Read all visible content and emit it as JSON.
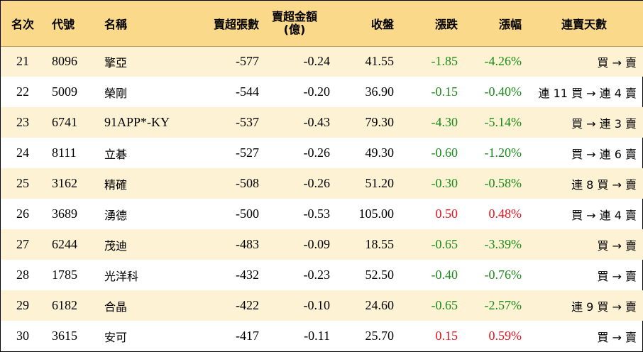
{
  "colors": {
    "header_bg": "#fbd98a",
    "alt_row_bg": "#fdf2d3",
    "up": "#e8101a",
    "down": "#1a8a1a"
  },
  "headers": {
    "rank": "名次",
    "code": "代號",
    "name": "名稱",
    "net_sell_volume": "賣超張數",
    "net_sell_amount_line1": "賣超金額",
    "net_sell_amount_line2": "(億)",
    "close": "收盤",
    "change": "漲跌",
    "change_pct": "漲幅",
    "consecutive_days": "連賣天數"
  },
  "rows": [
    {
      "rank": "21",
      "code": "8096",
      "name": "擎亞",
      "volume": "-577",
      "amount": "-0.24",
      "close": "41.55",
      "change": "-1.85",
      "pct": "-4.26%",
      "dir": "down",
      "days": "買 → 賣"
    },
    {
      "rank": "22",
      "code": "5009",
      "name": "榮剛",
      "volume": "-544",
      "amount": "-0.20",
      "close": "36.90",
      "change": "-0.15",
      "pct": "-0.40%",
      "dir": "down",
      "days": "連 11 買 → 連 4 賣"
    },
    {
      "rank": "23",
      "code": "6741",
      "name": "91APP*-KY",
      "volume": "-537",
      "amount": "-0.43",
      "close": "79.30",
      "change": "-4.30",
      "pct": "-5.14%",
      "dir": "down",
      "days": "買 → 連 3 賣"
    },
    {
      "rank": "24",
      "code": "8111",
      "name": "立碁",
      "volume": "-527",
      "amount": "-0.26",
      "close": "49.30",
      "change": "-0.60",
      "pct": "-1.20%",
      "dir": "down",
      "days": "買 → 連 6 賣"
    },
    {
      "rank": "25",
      "code": "3162",
      "name": "精確",
      "volume": "-508",
      "amount": "-0.26",
      "close": "51.20",
      "change": "-0.30",
      "pct": "-0.58%",
      "dir": "down",
      "days": "連 8 買 → 賣"
    },
    {
      "rank": "26",
      "code": "3689",
      "name": "湧德",
      "volume": "-500",
      "amount": "-0.53",
      "close": "105.00",
      "change": "0.50",
      "pct": "0.48%",
      "dir": "up",
      "days": "買 → 連 4 賣"
    },
    {
      "rank": "27",
      "code": "6244",
      "name": "茂迪",
      "volume": "-483",
      "amount": "-0.09",
      "close": "18.55",
      "change": "-0.65",
      "pct": "-3.39%",
      "dir": "down",
      "days": "買 → 賣"
    },
    {
      "rank": "28",
      "code": "1785",
      "name": "光洋科",
      "volume": "-432",
      "amount": "-0.23",
      "close": "52.50",
      "change": "-0.40",
      "pct": "-0.76%",
      "dir": "down",
      "days": "買 → 賣"
    },
    {
      "rank": "29",
      "code": "6182",
      "name": "合晶",
      "volume": "-422",
      "amount": "-0.10",
      "close": "24.60",
      "change": "-0.65",
      "pct": "-2.57%",
      "dir": "down",
      "days": "連 9 買 → 賣"
    },
    {
      "rank": "30",
      "code": "3615",
      "name": "安可",
      "volume": "-417",
      "amount": "-0.11",
      "close": "25.70",
      "change": "0.15",
      "pct": "0.59%",
      "dir": "up",
      "days": "買 → 賣"
    }
  ]
}
